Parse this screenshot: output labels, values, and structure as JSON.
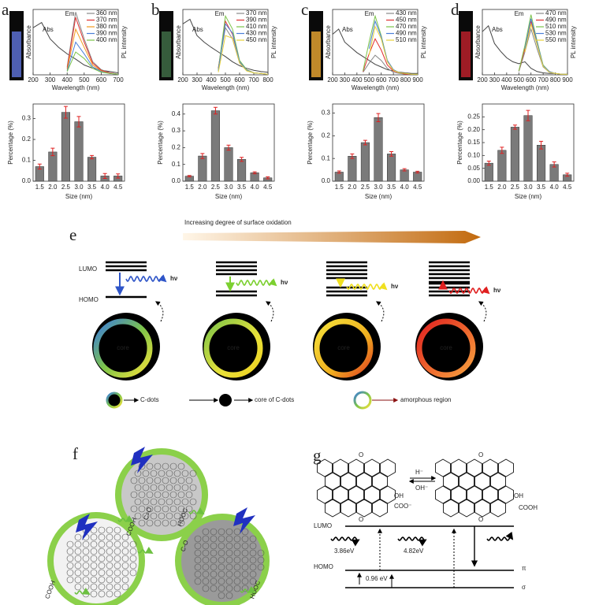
{
  "chart_data": [
    {
      "type": "line",
      "label": "a",
      "xlabel": "Wavelength (nm)",
      "ylabel": "Absorbance",
      "y2label": "PL intensity",
      "annotations": [
        "Abs",
        "Em"
      ],
      "vial_color": "#5a6fd0",
      "x": [
        200,
        250,
        300,
        350,
        400,
        450,
        500,
        550,
        600,
        650,
        700
      ],
      "xlim": [
        200,
        700
      ],
      "xticks": [
        200,
        300,
        400,
        500,
        600,
        700
      ],
      "ylim": [
        0,
        1
      ],
      "series": [
        {
          "name": "Abs",
          "color": "#444",
          "values": [
            0.72,
            0.8,
            0.55,
            0.42,
            0.32,
            0.24,
            0.15,
            0.1,
            0.07,
            0.05,
            0.03
          ]
        },
        {
          "name": "360 nm",
          "color": "#888",
          "values": [
            null,
            null,
            null,
            null,
            0.12,
            0.96,
            0.55,
            0.2,
            0.08,
            0.03,
            0.01
          ]
        },
        {
          "name": "370 nm",
          "color": "#e03030",
          "values": [
            null,
            null,
            null,
            null,
            0.1,
            0.88,
            0.5,
            0.18,
            0.07,
            0.03,
            0.01
          ]
        },
        {
          "name": "380 nm",
          "color": "#f29a1c",
          "values": [
            null,
            null,
            null,
            null,
            0.08,
            0.7,
            0.42,
            0.15,
            0.06,
            0.02,
            0.01
          ]
        },
        {
          "name": "390 nm",
          "color": "#4a7fd8",
          "values": [
            null,
            null,
            null,
            null,
            0.06,
            0.5,
            0.32,
            0.12,
            0.05,
            0.02,
            0.01
          ]
        },
        {
          "name": "400 nm",
          "color": "#7cc44a",
          "values": [
            null,
            null,
            null,
            null,
            0.05,
            0.35,
            0.25,
            0.1,
            0.04,
            0.02,
            0.01
          ]
        }
      ]
    },
    {
      "type": "line",
      "label": "b",
      "xlabel": "Wavelength (nm)",
      "ylabel": "Absorbance",
      "y2label": "PL intensity",
      "annotations": [
        "Abs",
        "Em"
      ],
      "vial_color": "#3e6b45",
      "x": [
        200,
        250,
        300,
        350,
        400,
        450,
        500,
        550,
        600,
        650,
        700,
        750,
        800
      ],
      "xlim": [
        200,
        800
      ],
      "xticks": [
        200,
        300,
        400,
        500,
        600,
        700,
        800
      ],
      "ylim": [
        0,
        1
      ],
      "series": [
        {
          "name": "Abs",
          "color": "#444",
          "values": [
            0.78,
            0.85,
            0.6,
            0.5,
            0.42,
            0.35,
            0.28,
            0.2,
            0.14,
            0.1,
            0.07,
            0.05,
            0.04
          ]
        },
        {
          "name": "370 nm",
          "color": "#888",
          "values": [
            null,
            null,
            null,
            null,
            null,
            0.1,
            0.72,
            0.55,
            0.18,
            0.07,
            0.03,
            0.02,
            0.01
          ]
        },
        {
          "name": "390 nm",
          "color": "#e03030",
          "values": [
            null,
            null,
            null,
            null,
            null,
            0.1,
            0.82,
            0.62,
            0.2,
            0.08,
            0.03,
            0.02,
            0.01
          ]
        },
        {
          "name": "410 nm",
          "color": "#7cc44a",
          "values": [
            null,
            null,
            null,
            null,
            null,
            0.08,
            0.9,
            0.7,
            0.22,
            0.08,
            0.03,
            0.02,
            0.01
          ]
        },
        {
          "name": "430 nm",
          "color": "#4a7fd8",
          "values": [
            null,
            null,
            null,
            null,
            null,
            0.06,
            0.78,
            0.64,
            0.2,
            0.07,
            0.03,
            0.02,
            0.01
          ]
        },
        {
          "name": "450 nm",
          "color": "#e8d23a",
          "values": [
            null,
            null,
            null,
            null,
            null,
            0.04,
            0.6,
            0.56,
            0.18,
            0.06,
            0.03,
            0.02,
            0.01
          ]
        }
      ]
    },
    {
      "type": "line",
      "label": "c",
      "xlabel": "Wavelength (nm)",
      "ylabel": "Absorbance",
      "y2label": "PL intensity",
      "annotations": [
        "Abs",
        "Em"
      ],
      "vial_color": "#e0a030",
      "x": [
        200,
        250,
        300,
        350,
        400,
        450,
        500,
        550,
        600,
        650,
        700,
        750,
        800,
        850,
        900
      ],
      "xlim": [
        200,
        900
      ],
      "xticks": [
        200,
        300,
        400,
        500,
        600,
        700,
        800,
        900
      ],
      "ylim": [
        0,
        1
      ],
      "series": [
        {
          "name": "Abs",
          "color": "#444",
          "values": [
            0.62,
            0.7,
            0.5,
            0.42,
            0.34,
            0.28,
            0.22,
            0.16,
            0.12,
            0.08,
            0.06,
            0.04,
            0.03,
            0.02,
            0.02
          ]
        },
        {
          "name": "430 nm",
          "color": "#888",
          "values": [
            null,
            null,
            null,
            null,
            null,
            0.04,
            0.18,
            0.3,
            0.22,
            0.1,
            0.04,
            0.02,
            0.01,
            0.01,
            0.01
          ]
        },
        {
          "name": "450 nm",
          "color": "#e03030",
          "values": [
            null,
            null,
            null,
            null,
            null,
            0.05,
            0.32,
            0.55,
            0.38,
            0.15,
            0.06,
            0.03,
            0.01,
            0.01,
            0.01
          ]
        },
        {
          "name": "470 nm",
          "color": "#7cc44a",
          "values": [
            null,
            null,
            null,
            null,
            null,
            0.06,
            0.5,
            0.9,
            0.6,
            0.22,
            0.08,
            0.03,
            0.02,
            0.01,
            0.01
          ]
        },
        {
          "name": "490 nm",
          "color": "#4a7fd8",
          "values": [
            null,
            null,
            null,
            null,
            null,
            null,
            0.4,
            0.82,
            0.58,
            0.22,
            0.08,
            0.03,
            0.02,
            0.01,
            0.01
          ]
        },
        {
          "name": "510 nm",
          "color": "#e8d23a",
          "values": [
            null,
            null,
            null,
            null,
            null,
            null,
            0.3,
            0.74,
            0.55,
            0.2,
            0.07,
            0.03,
            0.02,
            0.01,
            0.01
          ]
        }
      ]
    },
    {
      "type": "line",
      "label": "d",
      "xlabel": "Wavelength (nm)",
      "ylabel": "Absorbance",
      "y2label": "PL intensity",
      "annotations": [
        "Abs",
        "Em"
      ],
      "vial_color": "#b8202a",
      "x": [
        200,
        250,
        300,
        350,
        400,
        450,
        500,
        550,
        600,
        650,
        700,
        750,
        800,
        850,
        900
      ],
      "xlim": [
        200,
        900
      ],
      "xticks": [
        200,
        300,
        400,
        500,
        600,
        700,
        800,
        900
      ],
      "ylim": [
        0,
        1
      ],
      "series": [
        {
          "name": "Abs",
          "color": "#444",
          "values": [
            0.66,
            0.75,
            0.48,
            0.36,
            0.26,
            0.2,
            0.17,
            0.2,
            0.1,
            0.05,
            0.03,
            0.02,
            0.02,
            0.01,
            0.01
          ]
        },
        {
          "name": "470 nm",
          "color": "#888",
          "values": [
            null,
            null,
            null,
            null,
            null,
            null,
            0.05,
            0.35,
            0.7,
            0.4,
            0.12,
            0.04,
            0.02,
            0.01,
            0.01
          ]
        },
        {
          "name": "490 nm",
          "color": "#e03030",
          "values": [
            null,
            null,
            null,
            null,
            null,
            null,
            0.06,
            0.4,
            0.82,
            0.48,
            0.14,
            0.05,
            0.02,
            0.01,
            0.01
          ]
        },
        {
          "name": "510 nm",
          "color": "#7cc44a",
          "values": [
            null,
            null,
            null,
            null,
            null,
            null,
            0.06,
            0.45,
            0.92,
            0.52,
            0.15,
            0.05,
            0.02,
            0.01,
            0.01
          ]
        },
        {
          "name": "530 nm",
          "color": "#4a7fd8",
          "values": [
            null,
            null,
            null,
            null,
            null,
            null,
            null,
            0.4,
            0.86,
            0.5,
            0.14,
            0.05,
            0.02,
            0.01,
            0.01
          ]
        },
        {
          "name": "550 nm",
          "color": "#e8d23a",
          "values": [
            null,
            null,
            null,
            null,
            null,
            null,
            null,
            0.35,
            0.78,
            0.46,
            0.13,
            0.04,
            0.02,
            0.01,
            0.01
          ]
        }
      ]
    },
    {
      "type": "bar",
      "xlabel": "Size (nm)",
      "ylabel": "Percentage (%)",
      "color": "#7a7a7a",
      "error_color": "#e02020",
      "categories": [
        "1.5",
        "2.0",
        "2.5",
        "3.0",
        "3.5",
        "4.0",
        "4.5"
      ],
      "values": [
        0.07,
        0.14,
        0.33,
        0.285,
        0.115,
        0.025,
        0.025
      ],
      "errors": [
        0.012,
        0.018,
        0.028,
        0.025,
        0.008,
        0.012,
        0.01
      ],
      "ylim": [
        0,
        0.37
      ],
      "yticks": [
        {
          "value": 0,
          "label": "0.0"
        },
        0.1,
        0.2,
        0.3
      ]
    },
    {
      "type": "bar",
      "xlabel": "Size (nm)",
      "ylabel": "Percentage (%)",
      "color": "#7a7a7a",
      "error_color": "#e02020",
      "categories": [
        "1.5",
        "2.0",
        "2.5",
        "3.0",
        "3.5",
        "4.0",
        "4.5"
      ],
      "values": [
        0.03,
        0.15,
        0.42,
        0.2,
        0.13,
        0.05,
        0.02
      ],
      "errors": [
        0.004,
        0.015,
        0.02,
        0.015,
        0.012,
        0.006,
        0.006
      ],
      "ylim": [
        0,
        0.46
      ],
      "yticks": [
        {
          "value": 0,
          "label": "0.0"
        },
        0.1,
        0.2,
        0.3,
        0.4
      ]
    },
    {
      "type": "bar",
      "xlabel": "Size (nm)",
      "ylabel": "Percentage (%)",
      "color": "#7a7a7a",
      "error_color": "#e02020",
      "categories": [
        "1.5",
        "2.0",
        "2.5",
        "3.0",
        "3.5",
        "4.0",
        "4.5"
      ],
      "values": [
        0.04,
        0.11,
        0.17,
        0.28,
        0.12,
        0.05,
        0.04
      ],
      "errors": [
        0.005,
        0.01,
        0.01,
        0.018,
        0.01,
        0.005,
        0.004
      ],
      "ylim": [
        0,
        0.34
      ],
      "yticks": [
        {
          "value": 0,
          "label": "0.0"
        },
        0.1,
        0.2,
        0.3
      ]
    },
    {
      "type": "bar",
      "xlabel": "Size (nm)",
      "ylabel": "Percentage (%)",
      "color": "#7a7a7a",
      "error_color": "#e02020",
      "categories": [
        "1.5",
        "2.0",
        "2.5",
        "3.0",
        "3.5",
        "4.0",
        "4.5"
      ],
      "values": [
        0.07,
        0.12,
        0.21,
        0.255,
        0.14,
        0.065,
        0.025
      ],
      "errors": [
        0.008,
        0.012,
        0.008,
        0.02,
        0.015,
        0.01,
        0.006
      ],
      "ylim": [
        0,
        0.3
      ],
      "yticks": [
        {
          "value": 0,
          "label": "0.00"
        },
        0.05,
        {
          "value": 0.1,
          "label": "0.10"
        },
        0.15,
        {
          "value": 0.2,
          "label": "0.20"
        },
        0.25
      ]
    }
  ],
  "panel_e": {
    "label": "e",
    "title": "Increasing degree of surface oxidation",
    "lumo": "LUMO",
    "homo": "HOMO",
    "hv": "hν",
    "core": "core",
    "legend": [
      "C-dots",
      "core of C-dots",
      "amorphous region"
    ]
  },
  "panel_f": {
    "label": "f",
    "groups": [
      "COOH",
      "C=O",
      "HOOC",
      "C-O",
      "COOH",
      "HOOC"
    ]
  },
  "panel_g": {
    "label": "g",
    "h_minus": "H⁻",
    "oh_minus": "OH⁻",
    "o": "O",
    "oh": "OH",
    "coo": "COO⁻",
    "cooh": "COOH",
    "lumo": "LUMO",
    "homo": "HOMO",
    "pi": "π",
    "sigma": "σ",
    "gap1": "3.86eV",
    "gap2": "4.82eV",
    "gap3": "0.96 eV"
  }
}
